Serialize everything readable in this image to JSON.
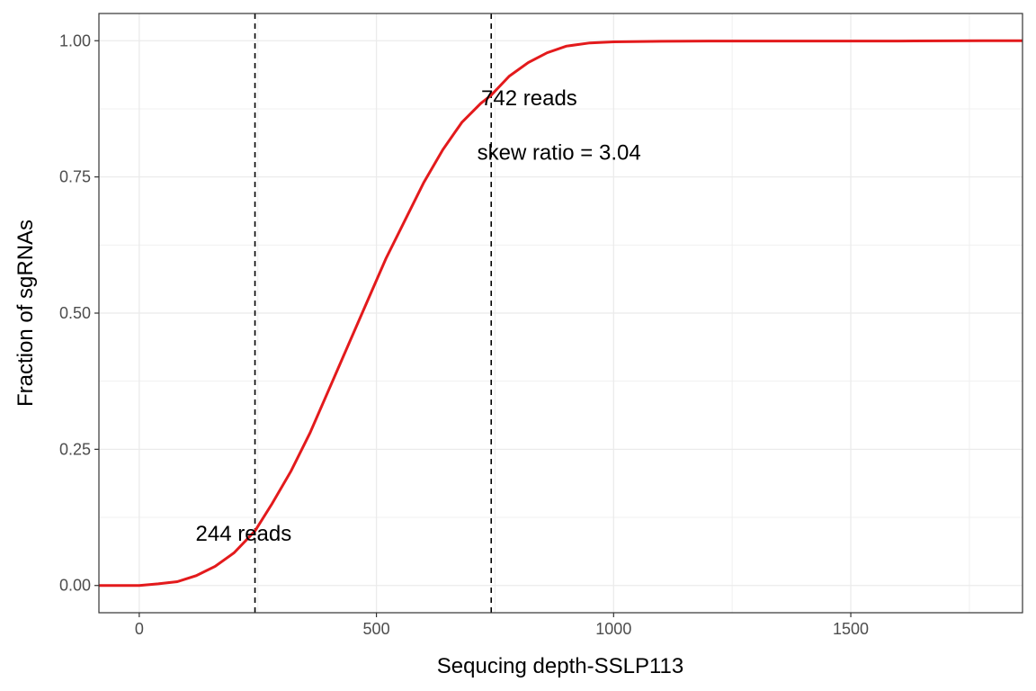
{
  "chart_data": {
    "type": "line",
    "title": "",
    "xlabel": "Sequcing depth-SSLP113",
    "ylabel": "Fraction of sgRNAs",
    "xlim": [
      -85,
      1862
    ],
    "ylim": [
      -0.05,
      1.05
    ],
    "x_ticks": [
      0,
      500,
      1000,
      1500
    ],
    "x_tick_labels": [
      "0",
      "500",
      "1000",
      "1500"
    ],
    "y_ticks": [
      0,
      0.25,
      0.5,
      0.75,
      1.0
    ],
    "y_tick_labels": [
      "0.00",
      "0.25",
      "0.50",
      "0.75",
      "1.00"
    ],
    "grid": true,
    "legend": "none",
    "series": [
      {
        "color": "#e31a1c",
        "x": [
          -85,
          0,
          40,
          80,
          120,
          160,
          200,
          244,
          280,
          320,
          360,
          400,
          440,
          480,
          520,
          560,
          600,
          640,
          680,
          720,
          742,
          780,
          820,
          860,
          900,
          950,
          1000,
          1100,
          1200,
          1400,
          1600,
          1780,
          1862
        ],
        "y": [
          0,
          0,
          0.003,
          0.007,
          0.018,
          0.035,
          0.06,
          0.1,
          0.15,
          0.21,
          0.28,
          0.36,
          0.44,
          0.52,
          0.6,
          0.67,
          0.74,
          0.8,
          0.85,
          0.885,
          0.9,
          0.935,
          0.96,
          0.978,
          0.99,
          0.996,
          0.998,
          0.999,
          0.9995,
          0.9995,
          0.9995,
          1.0,
          1.0
        ]
      }
    ],
    "vlines": [
      {
        "x": 244,
        "style": "dashed",
        "color": "#000000"
      },
      {
        "x": 742,
        "style": "dashed",
        "color": "#000000"
      }
    ],
    "annotations": [
      {
        "text": "244 reads",
        "x": 220,
        "y": 0.095
      },
      {
        "text": "742 reads",
        "x": 822,
        "y": 0.895
      },
      {
        "text": "skew ratio = 3.04",
        "x": 885,
        "y": 0.795
      }
    ]
  }
}
